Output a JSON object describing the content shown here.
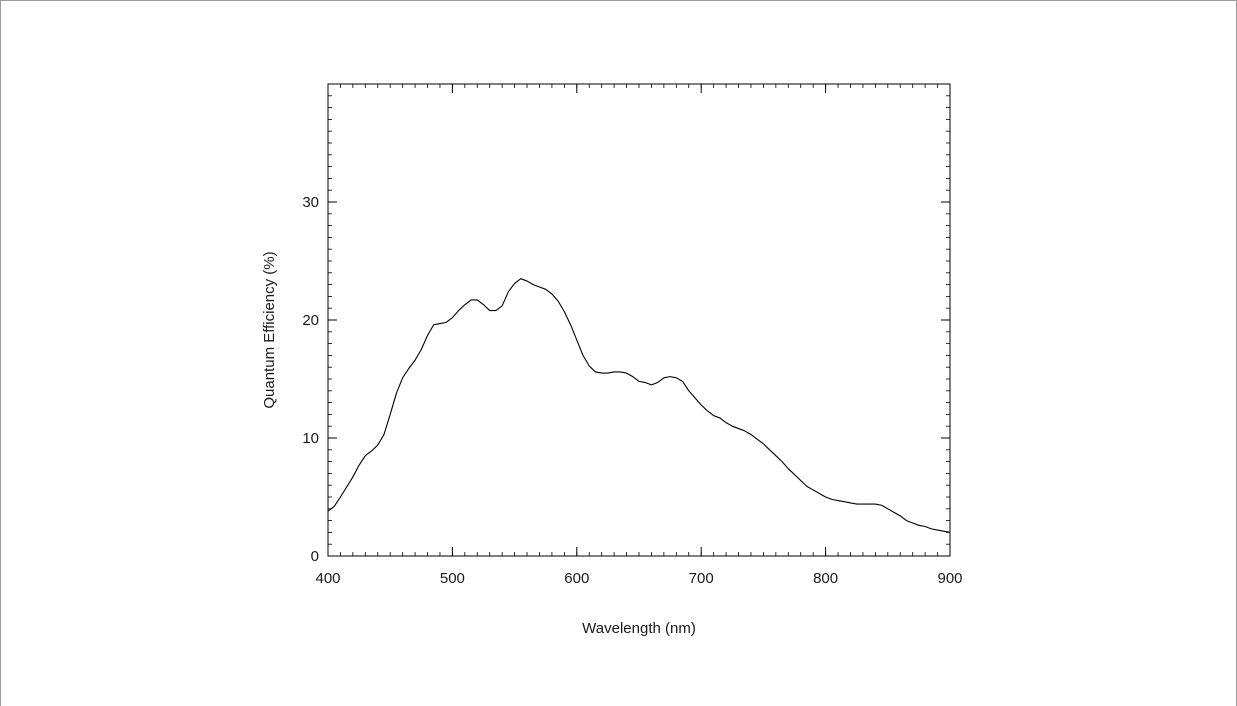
{
  "chart_data": {
    "type": "line",
    "title": "",
    "xlabel": "Wavelength (nm)",
    "ylabel": "Quantum Efficiency (%)",
    "xlim": [
      400,
      900
    ],
    "ylim": [
      0,
      40
    ],
    "x_ticks": [
      400,
      500,
      600,
      700,
      800,
      900
    ],
    "y_ticks": [
      0,
      10,
      20,
      30
    ],
    "x_tick_labels": [
      "400",
      "500",
      "600",
      "700",
      "800",
      "900"
    ],
    "y_tick_labels": [
      "0",
      "10",
      "20",
      "30"
    ],
    "grid": false,
    "legend": "none",
    "line_color": "#000000",
    "series": [
      {
        "x": [
          400,
          405,
          410,
          420,
          425,
          430,
          435,
          440,
          445,
          450,
          455,
          460,
          465,
          470,
          475,
          480,
          485,
          490,
          495,
          500,
          505,
          510,
          515,
          520,
          525,
          530,
          535,
          540,
          545,
          550,
          555,
          560,
          565,
          570,
          575,
          580,
          585,
          590,
          595,
          600,
          605,
          610,
          615,
          620,
          625,
          630,
          635,
          640,
          645,
          650,
          655,
          660,
          665,
          670,
          675,
          680,
          685,
          690,
          695,
          700,
          705,
          710,
          715,
          720,
          725,
          730,
          735,
          740,
          745,
          750,
          755,
          760,
          765,
          770,
          775,
          780,
          785,
          790,
          795,
          800,
          805,
          810,
          815,
          820,
          825,
          830,
          835,
          840,
          845,
          850,
          855,
          860,
          865,
          870,
          875,
          880,
          885,
          890,
          895,
          900
        ],
        "y": [
          3.8,
          4.2,
          5.0,
          6.7,
          7.7,
          8.5,
          8.9,
          9.4,
          10.3,
          12.0,
          13.8,
          15.1,
          15.9,
          16.6,
          17.5,
          18.7,
          19.6,
          19.7,
          19.8,
          20.2,
          20.8,
          21.3,
          21.7,
          21.7,
          21.3,
          20.8,
          20.8,
          21.2,
          22.4,
          23.1,
          23.5,
          23.3,
          23.0,
          22.8,
          22.6,
          22.2,
          21.6,
          20.7,
          19.6,
          18.3,
          17.0,
          16.1,
          15.6,
          15.5,
          15.5,
          15.6,
          15.6,
          15.5,
          15.2,
          14.8,
          14.7,
          14.5,
          14.7,
          15.1,
          15.2,
          15.1,
          14.8,
          14.0,
          13.4,
          12.8,
          12.3,
          11.9,
          11.7,
          11.3,
          11.0,
          10.8,
          10.6,
          10.3,
          9.9,
          9.5,
          9.0,
          8.5,
          8.0,
          7.4,
          6.9,
          6.4,
          5.9,
          5.6,
          5.3,
          5.0,
          4.8,
          4.7,
          4.6,
          4.5,
          4.4,
          4.4,
          4.4,
          4.4,
          4.3,
          4.0,
          3.7,
          3.4,
          3.0,
          2.8,
          2.6,
          2.5,
          2.3,
          2.2,
          2.1,
          2.0
        ]
      }
    ]
  }
}
